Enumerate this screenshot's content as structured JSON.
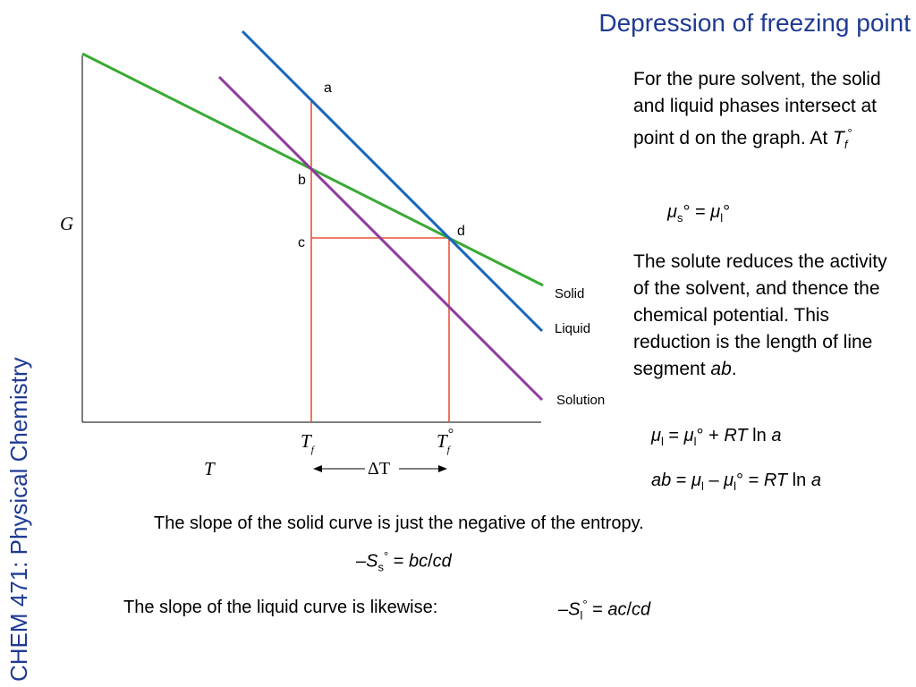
{
  "header": {
    "title": "Depression of freezing point"
  },
  "sidebar": {
    "course_label": "CHEM 471: Physical Chemistry"
  },
  "graph": {
    "y_axis_label": "G",
    "x_axis_label": "T",
    "curves": [
      {
        "name": "Solid",
        "color": "#3aaa35"
      },
      {
        "name": "Liquid",
        "color": "#1565c0"
      },
      {
        "name": "Solution",
        "color": "#8e3a9d"
      }
    ],
    "guide_color": "#e8533a",
    "points": {
      "a": "a",
      "b": "b",
      "c": "c",
      "d": "d"
    },
    "tick_labels": {
      "tf_base": "T",
      "tf_sub": "f",
      "tf0_base": "T",
      "tf0_sub": "f",
      "tf0_sup": "°"
    },
    "delta_label": "ΔT"
  },
  "text": {
    "para1": "For the pure solvent, the solid and liquid phases intersect at point d on the graph. At",
    "para1_tail_T": "T",
    "para1_tail_sub": "f",
    "para1_tail_sup": "°",
    "eq1": {
      "mu1": "μ",
      "s": "s",
      "deg1": "°",
      "equals": " = ",
      "mu2": "μ",
      "l": "l",
      "deg2": "°"
    },
    "para2_main": "The solute reduces the activity of the solvent, and thence the chemical potential. This reduction is the length of line segment",
    "para2_ab": "ab",
    "para2_end": ".",
    "eq2": {
      "mu1": "μ",
      "l1": "l",
      "eq": " = ",
      "mu2": "μ",
      "l2": "l",
      "deg": "°",
      "plus": " + ",
      "RT": "RT",
      "ln": " ln ",
      "a": "a"
    },
    "eq3": {
      "ab": "ab",
      "eq1": " = ",
      "mu1": "μ",
      "l1": "l",
      "minus": " – ",
      "mu2": "μ",
      "l2": "l",
      "deg": "°",
      "eq2": " = ",
      "RT": "RT",
      "ln": " ln ",
      "a": "a"
    },
    "solid_slope_text": "The slope of the solid curve is just the negative of the entropy.",
    "eq4": {
      "minus": "–",
      "S": "S",
      "s": "s",
      "deg": "°",
      "eq": " = ",
      "frac": "bc",
      "slash": "/",
      "den": "cd"
    },
    "liquid_slope_text": "The slope of the liquid curve is likewise:",
    "eq5": {
      "minus": "–",
      "S": "S",
      "l": "l",
      "deg": "°",
      "eq": " = ",
      "frac": "ac",
      "slash": "/",
      "den": "cd"
    }
  }
}
